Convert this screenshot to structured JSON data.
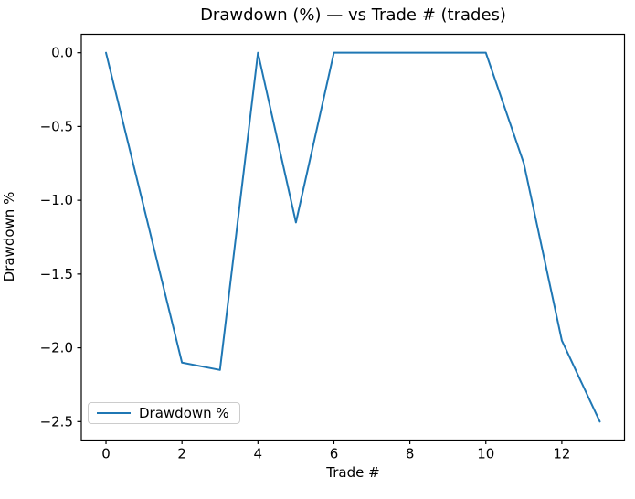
{
  "chart_data": {
    "type": "line",
    "title": "Drawdown (%) — vs Trade # (trades)",
    "xlabel": "Trade #",
    "ylabel": "Drawdown %",
    "x": [
      0,
      1,
      2,
      3,
      4,
      5,
      6,
      7,
      8,
      9,
      10,
      11,
      12,
      13
    ],
    "series": [
      {
        "name": "Drawdown %",
        "color": "#1f77b4",
        "values": [
          0.0,
          -1.05,
          -2.1,
          -2.15,
          0.0,
          -1.15,
          0.0,
          0.0,
          0.0,
          0.0,
          0.0,
          -0.75,
          -1.95,
          -2.5
        ]
      }
    ],
    "xlim": [
      -0.65,
      13.65
    ],
    "ylim": [
      -2.625,
      0.125
    ],
    "xticks": {
      "values": [
        0,
        2,
        4,
        6,
        8,
        10,
        12
      ],
      "labels": [
        "0",
        "2",
        "4",
        "6",
        "8",
        "10",
        "12"
      ]
    },
    "yticks": {
      "values": [
        0.0,
        -0.5,
        -1.0,
        -1.5,
        -2.0,
        -2.5
      ],
      "labels": [
        "0.0",
        "−0.5",
        "−1.0",
        "−1.5",
        "−2.0",
        "−2.5"
      ]
    },
    "grid": false,
    "axes_color": "#000000",
    "legend": {
      "position": "lower left",
      "entries": [
        {
          "label": "Drawdown %",
          "color": "#1f77b4"
        }
      ]
    }
  }
}
